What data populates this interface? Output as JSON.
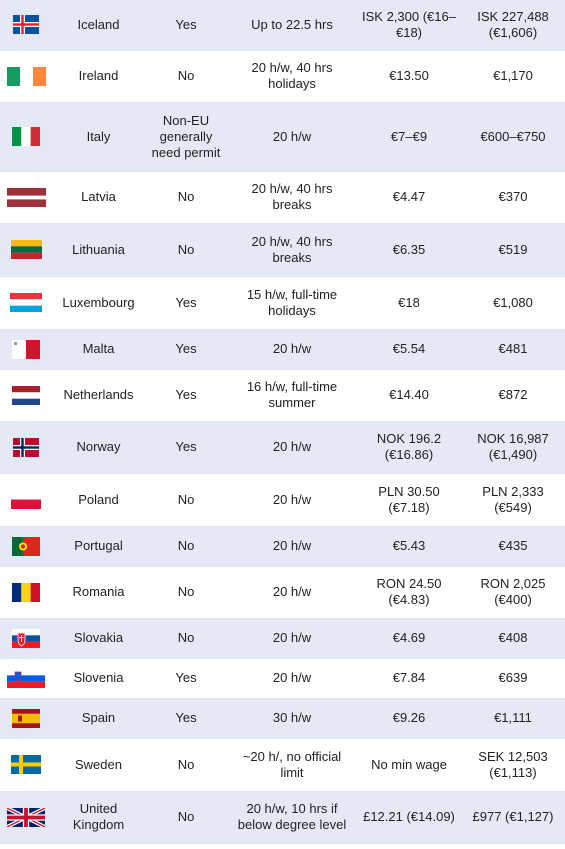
{
  "rows": [
    {
      "flag": "iceland-flag-icon",
      "country": "Iceland",
      "permit": "Yes",
      "hours": "Up to 22.5 hrs",
      "hourly": "ISK 2,300 (€16–\n€18)",
      "monthly": "ISK 227,488\n(€1,606)"
    },
    {
      "flag": "ireland-flag-icon",
      "country": "Ireland",
      "permit": "No",
      "hours": "20 h/w, 40 hrs\nholidays",
      "hourly": "€13.50",
      "monthly": "€1,170"
    },
    {
      "flag": "italy-flag-icon",
      "country": "Italy",
      "permit": "Non-EU\ngenerally\nneed permit",
      "hours": "20 h/w",
      "hourly": "€7–€9",
      "monthly": "€600–€750"
    },
    {
      "flag": "latvia-flag-icon",
      "country": "Latvia",
      "permit": "No",
      "hours": "20 h/w, 40 hrs\nbreaks",
      "hourly": "€4.47",
      "monthly": "€370"
    },
    {
      "flag": "lithuania-flag-icon",
      "country": "Lithuania",
      "permit": "No",
      "hours": "20 h/w, 40 hrs\nbreaks",
      "hourly": "€6.35",
      "monthly": "€519"
    },
    {
      "flag": "luxembourg-flag-icon",
      "country": "Luxembourg",
      "permit": "Yes",
      "hours": "15 h/w, full-time\nholidays",
      "hourly": "€18",
      "monthly": "€1,080"
    },
    {
      "flag": "malta-flag-icon",
      "country": "Malta",
      "permit": "Yes",
      "hours": "20 h/w",
      "hourly": "€5.54",
      "monthly": "€481"
    },
    {
      "flag": "netherlands-flag-icon",
      "country": "Netherlands",
      "permit": "Yes",
      "hours": "16 h/w, full-time\nsummer",
      "hourly": "€14.40",
      "monthly": "€872"
    },
    {
      "flag": "norway-flag-icon",
      "country": "Norway",
      "permit": "Yes",
      "hours": "20 h/w",
      "hourly": "NOK 196.2\n(€16.86)",
      "monthly": "NOK 16,987\n(€1,490)"
    },
    {
      "flag": "poland-flag-icon",
      "country": "Poland",
      "permit": "No",
      "hours": "20 h/w",
      "hourly": "PLN 30.50\n(€7.18)",
      "monthly": "PLN 2,333\n(€549)"
    },
    {
      "flag": "portugal-flag-icon",
      "country": "Portugal",
      "permit": "No",
      "hours": "20 h/w",
      "hourly": "€5.43",
      "monthly": "€435"
    },
    {
      "flag": "romania-flag-icon",
      "country": "Romania",
      "permit": "No",
      "hours": "20 h/w",
      "hourly": "RON 24.50\n(€4.83)",
      "monthly": "RON 2,025\n(€400)"
    },
    {
      "flag": "slovakia-flag-icon",
      "country": "Slovakia",
      "permit": "No",
      "hours": "20 h/w",
      "hourly": "€4.69",
      "monthly": "€408"
    },
    {
      "flag": "slovenia-flag-icon",
      "country": "Slovenia",
      "permit": "Yes",
      "hours": "20 h/w",
      "hourly": "€7.84",
      "monthly": "€639"
    },
    {
      "flag": "spain-flag-icon",
      "country": "Spain",
      "permit": "Yes",
      "hours": "30 h/w",
      "hourly": "€9.26",
      "monthly": "€1,111"
    },
    {
      "flag": "sweden-flag-icon",
      "country": "Sweden",
      "permit": "No",
      "hours": "~20 h/, no official\nlimit",
      "hourly": "No min wage",
      "monthly": "SEK 12,503\n(€1,113)"
    },
    {
      "flag": "uk-flag-icon",
      "country": "United\nKingdom",
      "permit": "No",
      "hours": "20 h/w, 10 hrs if\nbelow degree level",
      "hourly": "£12.21 (€14.09)",
      "monthly": "£977 (€1,127)"
    }
  ]
}
